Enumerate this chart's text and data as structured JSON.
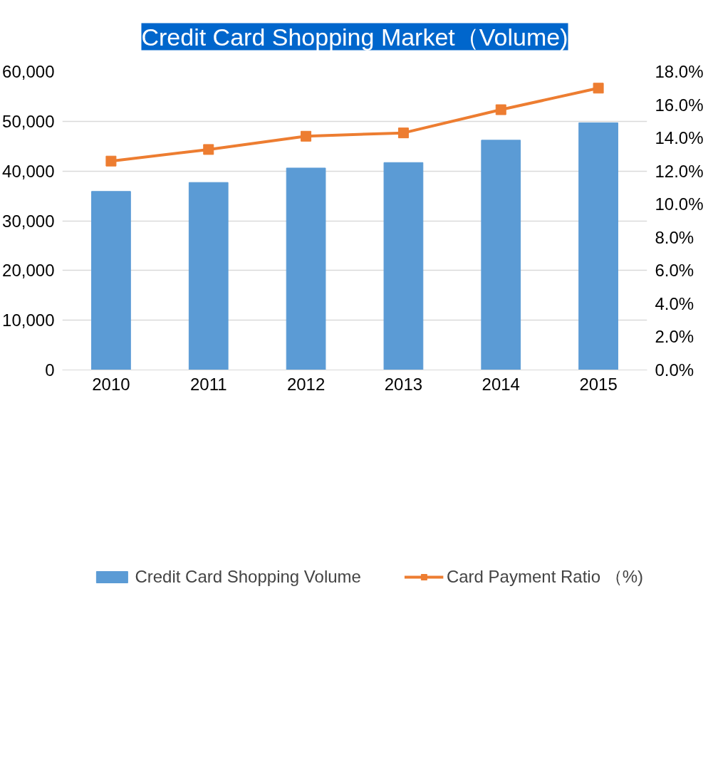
{
  "chart_data": {
    "type": "bar",
    "title": "Credit Card Shopping Market（Volume)",
    "categories": [
      "2010",
      "2011",
      "2012",
      "2013",
      "2014",
      "2015"
    ],
    "series": [
      {
        "name": "Credit Card Shopping Volume",
        "color": "#5b9bd5",
        "values": [
          35900,
          37700,
          40600,
          41700,
          46200,
          49700
        ]
      },
      {
        "name": "Card Payment Ratio （%)",
        "type": "line",
        "axis": "y2",
        "marker": "square",
        "color": "#ed7d31",
        "values": [
          12.6,
          13.3,
          14.1,
          14.3,
          15.7,
          17.0
        ]
      }
    ],
    "ylim": [
      0,
      60000
    ],
    "yticks": [
      {
        "value": 0,
        "label": "0"
      },
      {
        "value": 10000,
        "label": "10,000"
      },
      {
        "value": 20000,
        "label": "20,000"
      },
      {
        "value": 30000,
        "label": "30,000"
      },
      {
        "value": 40000,
        "label": "40,000"
      },
      {
        "value": 50000,
        "label": "50,000"
      },
      {
        "value": 60000,
        "label": "60,000"
      }
    ],
    "y2lim": [
      0,
      18
    ],
    "y2ticks": [
      {
        "value": 0,
        "label": "0.0%"
      },
      {
        "value": 2,
        "label": "2.0%"
      },
      {
        "value": 4,
        "label": "4.0%"
      },
      {
        "value": 6,
        "label": "6.0%"
      },
      {
        "value": 8,
        "label": "8.0%"
      },
      {
        "value": 10,
        "label": "10.0%"
      },
      {
        "value": 12,
        "label": "12.0%"
      },
      {
        "value": 14,
        "label": "14.0%"
      },
      {
        "value": 16,
        "label": "16.0%"
      },
      {
        "value": 18,
        "label": "18.0%"
      }
    ],
    "grid": "y",
    "legend": "bottom"
  }
}
